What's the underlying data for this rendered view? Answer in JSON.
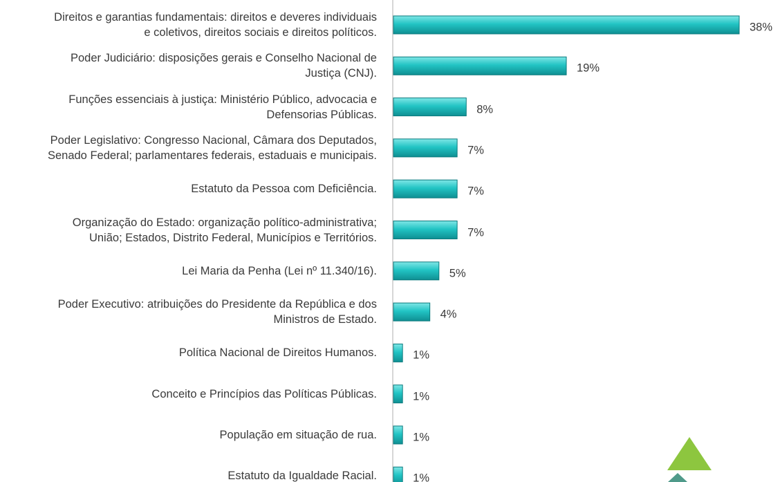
{
  "chart_data": {
    "type": "barh",
    "categories": [
      "Direitos e garantias fundamentais: direitos e deveres individuais\ne coletivos, direitos sociais e direitos políticos.",
      "Poder Judiciário: disposições gerais e Conselho Nacional de\nJustiça (CNJ).",
      "Funções essenciais à justiça: Ministério Público, advocacia e\nDefensorias Públicas.",
      "Poder Legislativo: Congresso Nacional, Câmara dos Deputados,\nSenado Federal; parlamentares federais, estaduais e municipais.",
      "Estatuto da Pessoa com Deficiência.",
      "Organização do Estado: organização político-administrativa;\nUnião; Estados, Distrito Federal, Municípios e Territórios.",
      "Lei Maria da Penha (Lei nº 11.340/16).",
      "Poder Executivo: atribuições do Presidente da República e dos\nMinistros de Estado.",
      "Política Nacional de Direitos Humanos.",
      "Conceito e Princípios das Políticas Públicas.",
      "População em situação de rua.",
      "Estatuto da Igualdade Racial."
    ],
    "values": [
      38,
      19,
      8,
      7,
      7,
      7,
      5,
      4,
      1,
      1,
      1,
      1
    ],
    "value_labels": [
      "38%",
      "19%",
      "8%",
      "7%",
      "7%",
      "7%",
      "5%",
      "4%",
      "1%",
      "1%",
      "1%",
      "1%"
    ],
    "color": "#20c0c0",
    "xlim": [
      0,
      38
    ]
  }
}
